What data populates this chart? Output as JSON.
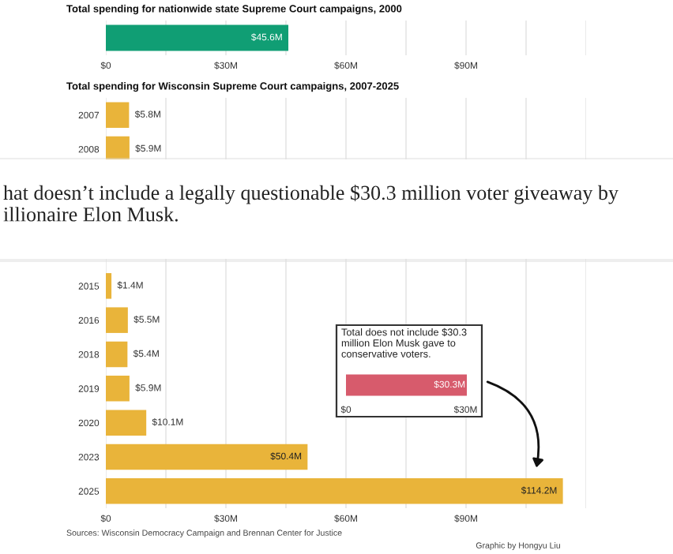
{
  "chart_data": [
    {
      "type": "bar",
      "orientation": "horizontal",
      "title": "Total spending for nationwide state Supreme Court campaigns, 2000",
      "categories": [
        null
      ],
      "values": [
        45.6
      ],
      "color": "#109e74",
      "value_labels": [
        "$45.6M"
      ],
      "xlim": [
        0,
        120
      ],
      "xticks": [
        {
          "value": 0,
          "label": "$0"
        },
        {
          "value": 15,
          "label": null
        },
        {
          "value": 30,
          "label": "$30M"
        },
        {
          "value": 45,
          "label": null
        },
        {
          "value": 60,
          "label": "$60M"
        },
        {
          "value": 75,
          "label": null
        },
        {
          "value": 90,
          "label": "$90M"
        },
        {
          "value": 105,
          "label": null
        },
        {
          "value": 120,
          "label": null
        }
      ],
      "grid": "x"
    },
    {
      "type": "bar",
      "orientation": "horizontal",
      "title": "Total spending for Wisconsin Supreme Court campaigns, 2007-2025",
      "categories": [
        "2007",
        "2008",
        null,
        null,
        null,
        "2015",
        "2016",
        "2018",
        "2019",
        "2020",
        "2023",
        "2025"
      ],
      "values": [
        5.8,
        5.9,
        null,
        null,
        null,
        1.4,
        5.5,
        5.4,
        5.9,
        10.1,
        50.4,
        114.2
      ],
      "color": "#e9b43a",
      "value_labels": [
        "$5.8M",
        "$5.9M",
        null,
        null,
        null,
        "$1.4M",
        "$5.5M",
        "$5.4M",
        "$5.9M",
        "$10.1M",
        "$50.4M",
        "$114.2M"
      ],
      "xlim": [
        0,
        120
      ],
      "xticks": [
        {
          "value": 0,
          "label": "$0"
        },
        {
          "value": 15,
          "label": null
        },
        {
          "value": 30,
          "label": "$30M"
        },
        {
          "value": 45,
          "label": null
        },
        {
          "value": 60,
          "label": "$60M"
        },
        {
          "value": 75,
          "label": null
        },
        {
          "value": 90,
          "label": "$90M"
        },
        {
          "value": 105,
          "label": null
        },
        {
          "value": 120,
          "label": null
        }
      ],
      "grid": "x",
      "annotations": [
        "hat doesn’t include a legally questionable $30.3 million voter giveaway by illionaire Elon Musk.",
        "Sources: Wisconsin Democracy Campaign and Brennan Center for Justice",
        "Graphic by Hongyu Liu"
      ]
    },
    {
      "type": "bar",
      "orientation": "horizontal",
      "title": "Total does not include $30.3 million Elon Musk gave to conservative voters.",
      "categories": [
        null
      ],
      "values": [
        30.3
      ],
      "color": "#d75b6c",
      "value_labels": [
        "$30.3M"
      ],
      "xlim": [
        0,
        30.5
      ],
      "xticks": [
        {
          "value": 0,
          "label": "$0"
        },
        {
          "value": 30,
          "label": "$30M"
        }
      ]
    }
  ]
}
